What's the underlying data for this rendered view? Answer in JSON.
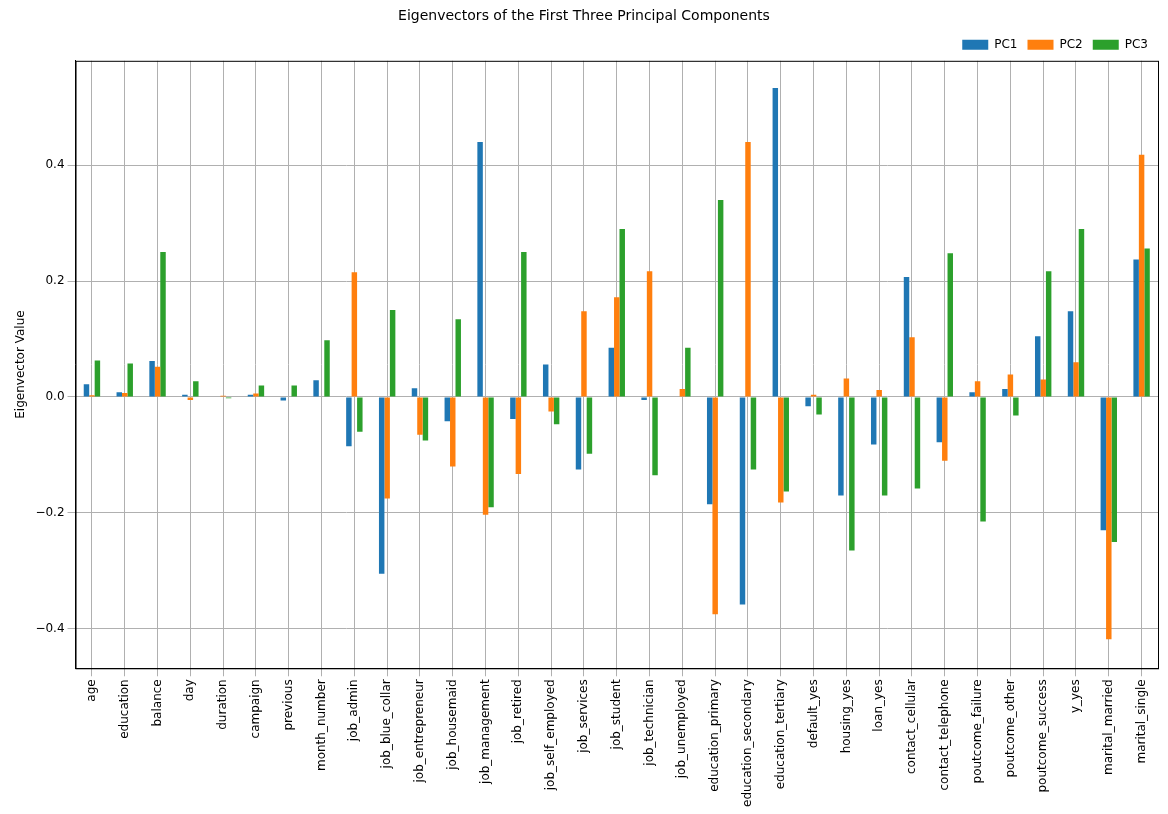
{
  "chart_data": {
    "type": "bar",
    "title": "Eigenvectors of the First Three Principal Components",
    "y_label": "Eigenvector Value",
    "categories": [
      "age",
      "education",
      "balance",
      "day",
      "duration",
      "campaign",
      "previous",
      "month_number",
      "job_admin",
      "job_blue_collar",
      "job_entrepreneur",
      "job_housemaid",
      "job_management",
      "job_retired",
      "job_self_employed",
      "job_services",
      "job_student",
      "job_technician",
      "job_unemployed",
      "education_primary",
      "education_secondary",
      "education_tertiary",
      "default_yes",
      "housing_yes",
      "loan_yes",
      "contact_cellular",
      "contact_telephone",
      "poutcome_failure",
      "poutcome_other",
      "poutcome_success",
      "y_yes",
      "marital_married",
      "marital_single"
    ],
    "series": [
      {
        "name": "PC1",
        "color": "#1f77b4",
        "values": [
          0.022,
          0.008,
          0.062,
          0.004,
          0.0,
          0.004,
          -0.006,
          0.029,
          -0.085,
          -0.305,
          0.015,
          -0.042,
          0.44,
          -0.038,
          0.056,
          -0.125,
          0.085,
          -0.005,
          0.0,
          -0.185,
          -0.358,
          0.533,
          -0.016,
          -0.17,
          -0.082,
          0.207,
          -0.078,
          0.008,
          0.014,
          0.105,
          0.148,
          -0.23,
          0.237
        ]
      },
      {
        "name": "PC2",
        "color": "#ff7f0e",
        "values": [
          0.003,
          0.007,
          0.052,
          -0.005,
          0.002,
          0.006,
          0.001,
          0.001,
          0.215,
          -0.175,
          -0.065,
          -0.12,
          -0.203,
          -0.133,
          -0.025,
          0.148,
          0.172,
          0.217,
          0.014,
          -0.375,
          0.44,
          -0.182,
          0.004,
          0.032,
          0.012,
          0.103,
          -0.11,
          0.027,
          0.039,
          0.03,
          0.06,
          -0.418,
          0.418
        ]
      },
      {
        "name": "PC3",
        "color": "#2ca02c",
        "values": [
          0.063,
          0.058,
          0.25,
          0.027,
          -0.002,
          0.02,
          0.02,
          0.098,
          -0.06,
          0.15,
          -0.075,
          0.134,
          -0.19,
          0.25,
          -0.047,
          -0.098,
          0.29,
          -0.135,
          0.085,
          0.34,
          -0.125,
          -0.163,
          -0.03,
          -0.265,
          -0.17,
          -0.158,
          0.248,
          -0.215,
          -0.032,
          0.217,
          0.29,
          -0.25,
          0.256
        ]
      }
    ],
    "ylim": [
      -0.468,
      0.58
    ],
    "yticks": [
      {
        "value": -0.4,
        "label": "−0.4"
      },
      {
        "value": -0.2,
        "label": "−0.2"
      },
      {
        "value": 0,
        "label": "0.0"
      },
      {
        "value": 0.2,
        "label": "0.2"
      },
      {
        "value": 0.4,
        "label": "0.4"
      }
    ],
    "grid": true,
    "legend": "upper right"
  }
}
